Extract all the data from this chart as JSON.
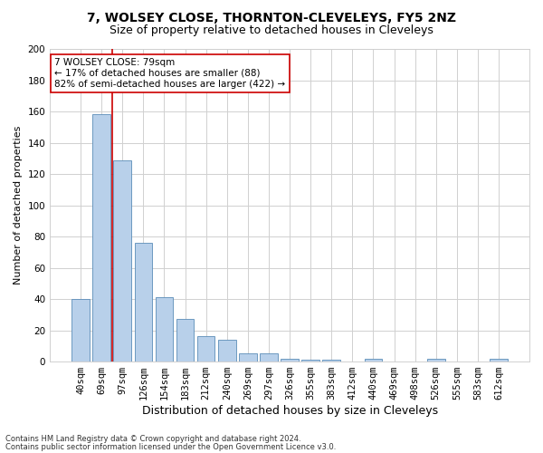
{
  "title1": "7, WOLSEY CLOSE, THORNTON-CLEVELEYS, FY5 2NZ",
  "title2": "Size of property relative to detached houses in Cleveleys",
  "xlabel": "Distribution of detached houses by size in Cleveleys",
  "ylabel": "Number of detached properties",
  "categories": [
    "40sqm",
    "69sqm",
    "97sqm",
    "126sqm",
    "154sqm",
    "183sqm",
    "212sqm",
    "240sqm",
    "269sqm",
    "297sqm",
    "326sqm",
    "355sqm",
    "383sqm",
    "412sqm",
    "440sqm",
    "469sqm",
    "498sqm",
    "526sqm",
    "555sqm",
    "583sqm",
    "612sqm"
  ],
  "values": [
    40,
    158,
    129,
    76,
    41,
    27,
    16,
    14,
    5,
    5,
    2,
    1,
    1,
    0,
    2,
    0,
    0,
    2,
    0,
    0,
    2
  ],
  "bar_color": "#b8d0ea",
  "bar_edge_color": "#5b8db8",
  "vline_color": "#cc0000",
  "vline_x": 1.5,
  "annotation_title": "7 WOLSEY CLOSE: 79sqm",
  "annotation_line1": "← 17% of detached houses are smaller (88)",
  "annotation_line2": "82% of semi-detached houses are larger (422) →",
  "annotation_box_color": "#ffffff",
  "annotation_box_edge_color": "#cc0000",
  "ylim": [
    0,
    200
  ],
  "yticks": [
    0,
    20,
    40,
    60,
    80,
    100,
    120,
    140,
    160,
    180,
    200
  ],
  "footer1": "Contains HM Land Registry data © Crown copyright and database right 2024.",
  "footer2": "Contains public sector information licensed under the Open Government Licence v3.0.",
  "bg_color": "#ffffff",
  "grid_color": "#d0d0d0",
  "title1_fontsize": 10,
  "title2_fontsize": 9,
  "xlabel_fontsize": 9,
  "ylabel_fontsize": 8,
  "tick_fontsize": 7.5,
  "ann_fontsize": 7.5,
  "footer_fontsize": 6
}
